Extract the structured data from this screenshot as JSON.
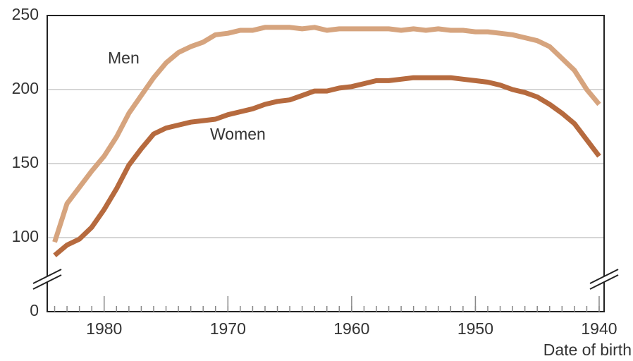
{
  "chart_data": {
    "type": "line",
    "x": [
      1984,
      1983,
      1982,
      1981,
      1980,
      1979,
      1978,
      1977,
      1976,
      1975,
      1974,
      1973,
      1972,
      1971,
      1970,
      1969,
      1968,
      1967,
      1966,
      1965,
      1964,
      1963,
      1962,
      1961,
      1960,
      1959,
      1958,
      1957,
      1956,
      1955,
      1954,
      1953,
      1952,
      1951,
      1950,
      1949,
      1948,
      1947,
      1946,
      1945,
      1944,
      1943,
      1942,
      1941,
      1940
    ],
    "series": [
      {
        "name": "Men",
        "color": "#d6a47e",
        "values": [
          97,
          123,
          134,
          145,
          155,
          168,
          184,
          196,
          208,
          218,
          225,
          229,
          232,
          237,
          238,
          240,
          240,
          242,
          242,
          242,
          241,
          242,
          240,
          241,
          241,
          241,
          241,
          241,
          240,
          241,
          240,
          241,
          240,
          240,
          239,
          239,
          238,
          237,
          235,
          233,
          229,
          221,
          213,
          200,
          190
        ]
      },
      {
        "name": "Women",
        "color": "#b66a3e",
        "values": [
          88,
          95,
          99,
          107,
          119,
          133,
          149,
          160,
          170,
          174,
          176,
          178,
          179,
          180,
          183,
          185,
          187,
          190,
          192,
          193,
          196,
          199,
          199,
          201,
          202,
          204,
          206,
          206,
          207,
          208,
          208,
          208,
          208,
          207,
          206,
          205,
          203,
          200,
          198,
          195,
          190,
          184,
          177,
          166,
          155
        ]
      }
    ],
    "xlim": [
      1984.6,
      1939.6
    ],
    "xticks": [
      1980,
      1970,
      1960,
      1950,
      1940
    ],
    "xlabel": "Date of birth",
    "ylim": [
      0,
      250
    ],
    "ybreak": [
      0,
      50
    ],
    "yticks": [
      0,
      100,
      150,
      200,
      250
    ],
    "grid": true
  }
}
